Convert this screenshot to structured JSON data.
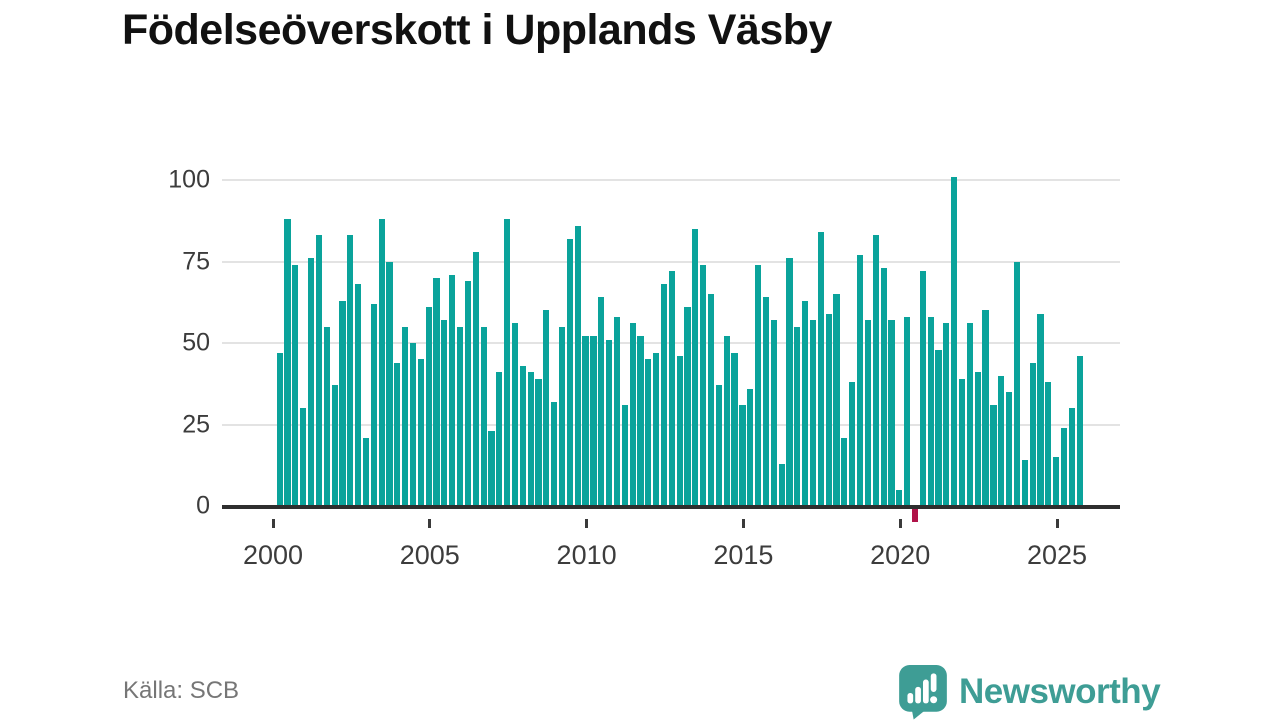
{
  "page": {
    "title": "Födelseöverskott i Upplands Väsby"
  },
  "footer": {
    "source": "Källa: SCB"
  },
  "branding": {
    "logo_text": "Newsworthy",
    "logo_icon": "bar-chart-speech-bubble-icon"
  },
  "chart_data": {
    "type": "bar",
    "title": "Födelseöverskott i Upplands Väsby",
    "xlabel": "",
    "ylabel": "",
    "x_unit": "quarter",
    "x_start": "2000-Q1",
    "x_end": "2025-Q3",
    "x_tick_labels": [
      2000,
      2005,
      2010,
      2015,
      2020,
      2025
    ],
    "y_tick_labels": [
      0,
      25,
      50,
      75,
      100
    ],
    "ylim": [
      -10,
      105
    ],
    "grid": true,
    "legend": false,
    "bar_color": "#0aa39b",
    "negative_bar_color": "#b01349",
    "source": "SCB",
    "values_by_year": [
      {
        "year": 2000,
        "values": [
          47,
          88,
          74,
          30
        ]
      },
      {
        "year": 2001,
        "values": [
          76,
          83,
          55,
          37
        ]
      },
      {
        "year": 2002,
        "values": [
          63,
          83,
          68,
          21
        ]
      },
      {
        "year": 2003,
        "values": [
          62,
          88,
          75,
          44
        ]
      },
      {
        "year": 2004,
        "values": [
          55,
          50,
          45,
          61
        ]
      },
      {
        "year": 2005,
        "values": [
          70,
          57,
          71,
          55
        ]
      },
      {
        "year": 2006,
        "values": [
          69,
          78,
          55,
          23
        ]
      },
      {
        "year": 2007,
        "values": [
          41,
          88,
          56,
          43
        ]
      },
      {
        "year": 2008,
        "values": [
          41,
          39,
          60,
          32
        ]
      },
      {
        "year": 2009,
        "values": [
          55,
          82,
          86,
          52
        ]
      },
      {
        "year": 2010,
        "values": [
          52,
          64,
          51,
          58
        ]
      },
      {
        "year": 2011,
        "values": [
          31,
          56,
          52,
          45
        ]
      },
      {
        "year": 2012,
        "values": [
          47,
          68,
          72,
          46
        ]
      },
      {
        "year": 2013,
        "values": [
          61,
          85,
          74,
          65
        ]
      },
      {
        "year": 2014,
        "values": [
          37,
          52,
          47,
          31
        ]
      },
      {
        "year": 2015,
        "values": [
          36,
          74,
          64,
          57
        ]
      },
      {
        "year": 2016,
        "values": [
          13,
          76,
          55,
          63
        ]
      },
      {
        "year": 2017,
        "values": [
          57,
          84,
          59,
          65
        ]
      },
      {
        "year": 2018,
        "values": [
          21,
          38,
          77,
          57
        ]
      },
      {
        "year": 2019,
        "values": [
          83,
          73,
          57,
          5
        ]
      },
      {
        "year": 2020,
        "values": [
          58,
          -5,
          72,
          58
        ]
      },
      {
        "year": 2021,
        "values": [
          48,
          56,
          101,
          39
        ]
      },
      {
        "year": 2022,
        "values": [
          56,
          41,
          60,
          31
        ]
      },
      {
        "year": 2023,
        "values": [
          40,
          35,
          75,
          14
        ]
      },
      {
        "year": 2024,
        "values": [
          44,
          59,
          38,
          15
        ]
      },
      {
        "year": 2025,
        "values": [
          24,
          30,
          46
        ]
      }
    ]
  }
}
